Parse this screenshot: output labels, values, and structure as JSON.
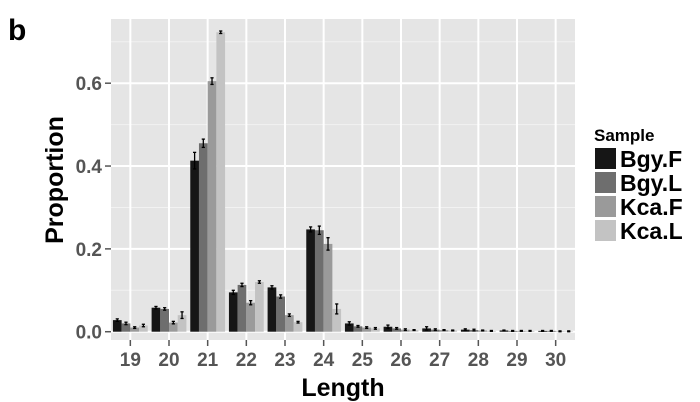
{
  "panel_label": "b",
  "chart_data": {
    "type": "bar",
    "title": "",
    "xlabel": "Length",
    "ylabel": "Proportion",
    "categories": [
      "19",
      "20",
      "21",
      "22",
      "23",
      "24",
      "25",
      "26",
      "27",
      "28",
      "29",
      "30"
    ],
    "ylim": [
      -0.02,
      0.755
    ],
    "yticks": [
      0.0,
      0.2,
      0.4,
      0.6
    ],
    "ytick_labels": [
      "0.0",
      "0.2",
      "0.4",
      "0.6"
    ],
    "grid": true,
    "legend_title": "Sample",
    "legend_position": "right",
    "series": [
      {
        "name": "Bgy.F",
        "color": "#161616",
        "values": [
          0.028,
          0.058,
          0.413,
          0.095,
          0.107,
          0.247,
          0.02,
          0.012,
          0.008,
          0.005,
          0.003,
          0.002
        ],
        "errors": [
          0.003,
          0.003,
          0.02,
          0.005,
          0.004,
          0.006,
          0.004,
          0.004,
          0.004,
          0.002,
          0.001,
          0.001
        ]
      },
      {
        "name": "Bgy.L",
        "color": "#6e6e6e",
        "values": [
          0.02,
          0.055,
          0.455,
          0.113,
          0.085,
          0.245,
          0.013,
          0.008,
          0.005,
          0.004,
          0.002,
          0.002
        ],
        "errors": [
          0.003,
          0.003,
          0.01,
          0.004,
          0.004,
          0.01,
          0.002,
          0.002,
          0.002,
          0.002,
          0.001,
          0.001
        ]
      },
      {
        "name": "Kca.F",
        "color": "#9a9a9a",
        "values": [
          0.01,
          0.022,
          0.605,
          0.07,
          0.04,
          0.212,
          0.01,
          0.005,
          0.004,
          0.003,
          0.002,
          0.001
        ],
        "errors": [
          0.002,
          0.003,
          0.008,
          0.005,
          0.003,
          0.015,
          0.002,
          0.002,
          0.001,
          0.001,
          0.001,
          0.001
        ]
      },
      {
        "name": "Kca.L",
        "color": "#c3c3c3",
        "values": [
          0.015,
          0.04,
          0.723,
          0.12,
          0.023,
          0.055,
          0.008,
          0.004,
          0.003,
          0.002,
          0.002,
          0.001
        ],
        "errors": [
          0.003,
          0.008,
          0.003,
          0.003,
          0.002,
          0.012,
          0.002,
          0.001,
          0.001,
          0.001,
          0.001,
          0.001
        ]
      }
    ]
  }
}
